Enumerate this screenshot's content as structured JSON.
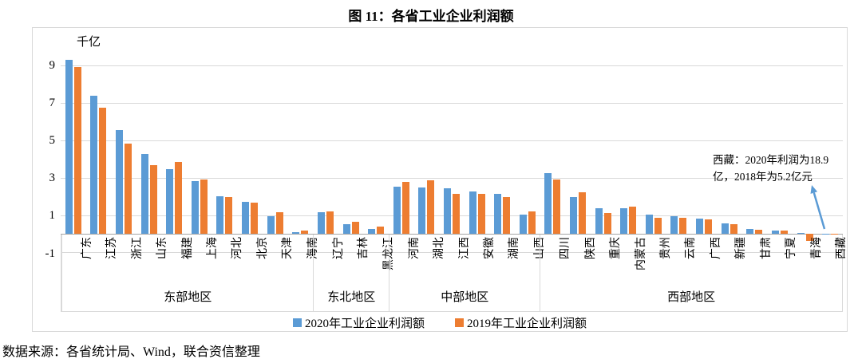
{
  "title": "图 11：各省工业企业利润额",
  "unit_label": "千亿",
  "source": "数据来源：各省统计局、Wind，联合资信整理",
  "annotation": {
    "line1": "西藏：2020年利润为18.9",
    "line2": "亿，2018年为5.2亿元"
  },
  "colors": {
    "blue_2020": "#5B9BD5",
    "orange_2019": "#ED7D31",
    "gridline": "#d9d9d9",
    "axis": "#a6a6a6",
    "arrow": "#5B9BD5"
  },
  "chart_data": {
    "type": "bar",
    "title": "图 11：各省工业企业利润额",
    "xlabel": "",
    "ylabel": "千亿",
    "yticks": [
      9,
      7,
      5,
      3,
      1,
      -1
    ],
    "ylim": [
      -1,
      10.2
    ],
    "grid": true,
    "legend_position": "bottom",
    "series": [
      {
        "name": "2020年工业企业利润额",
        "color": "#5B9BD5"
      },
      {
        "name": "2019年工业企业利润额",
        "color": "#ED7D31"
      }
    ],
    "regions": [
      {
        "label": "东部地区",
        "provinces": [
          "广东",
          "江苏",
          "浙江",
          "山东",
          "福建",
          "上海",
          "河北",
          "北京",
          "天津",
          "海南"
        ],
        "values_2020": [
          9.25,
          7.35,
          5.5,
          4.25,
          3.45,
          2.8,
          2.0,
          1.7,
          0.95,
          0.1
        ],
        "values_2019": [
          8.85,
          6.7,
          4.8,
          3.65,
          3.8,
          2.9,
          1.95,
          1.65,
          1.15,
          0.15
        ]
      },
      {
        "label": "东北地区",
        "provinces": [
          "辽宁",
          "吉林",
          "黑龙江"
        ],
        "values_2020": [
          1.15,
          0.5,
          0.25
        ],
        "values_2019": [
          1.2,
          0.65,
          0.4
        ]
      },
      {
        "label": "中部地区",
        "provinces": [
          "河南",
          "湖北",
          "江西",
          "安徽",
          "湖南",
          "山西"
        ],
        "values_2020": [
          2.5,
          2.45,
          2.4,
          2.25,
          2.1,
          1.0
        ],
        "values_2019": [
          2.75,
          2.85,
          2.1,
          2.1,
          1.95,
          1.2
        ]
      },
      {
        "label": "西部地区",
        "provinces": [
          "四川",
          "陕西",
          "重庆",
          "内蒙古",
          "贵州",
          "云南",
          "广西",
          "新疆",
          "甘肃",
          "宁夏",
          "青海",
          "西藏"
        ],
        "values_2020": [
          3.2,
          1.95,
          1.35,
          1.35,
          1.0,
          0.95,
          0.8,
          0.55,
          0.25,
          0.18,
          0.05,
          0.019
        ],
        "values_2019": [
          2.9,
          2.2,
          1.1,
          1.45,
          0.85,
          0.85,
          0.75,
          0.5,
          0.22,
          0.17,
          -0.4,
          0.005
        ]
      }
    ]
  }
}
